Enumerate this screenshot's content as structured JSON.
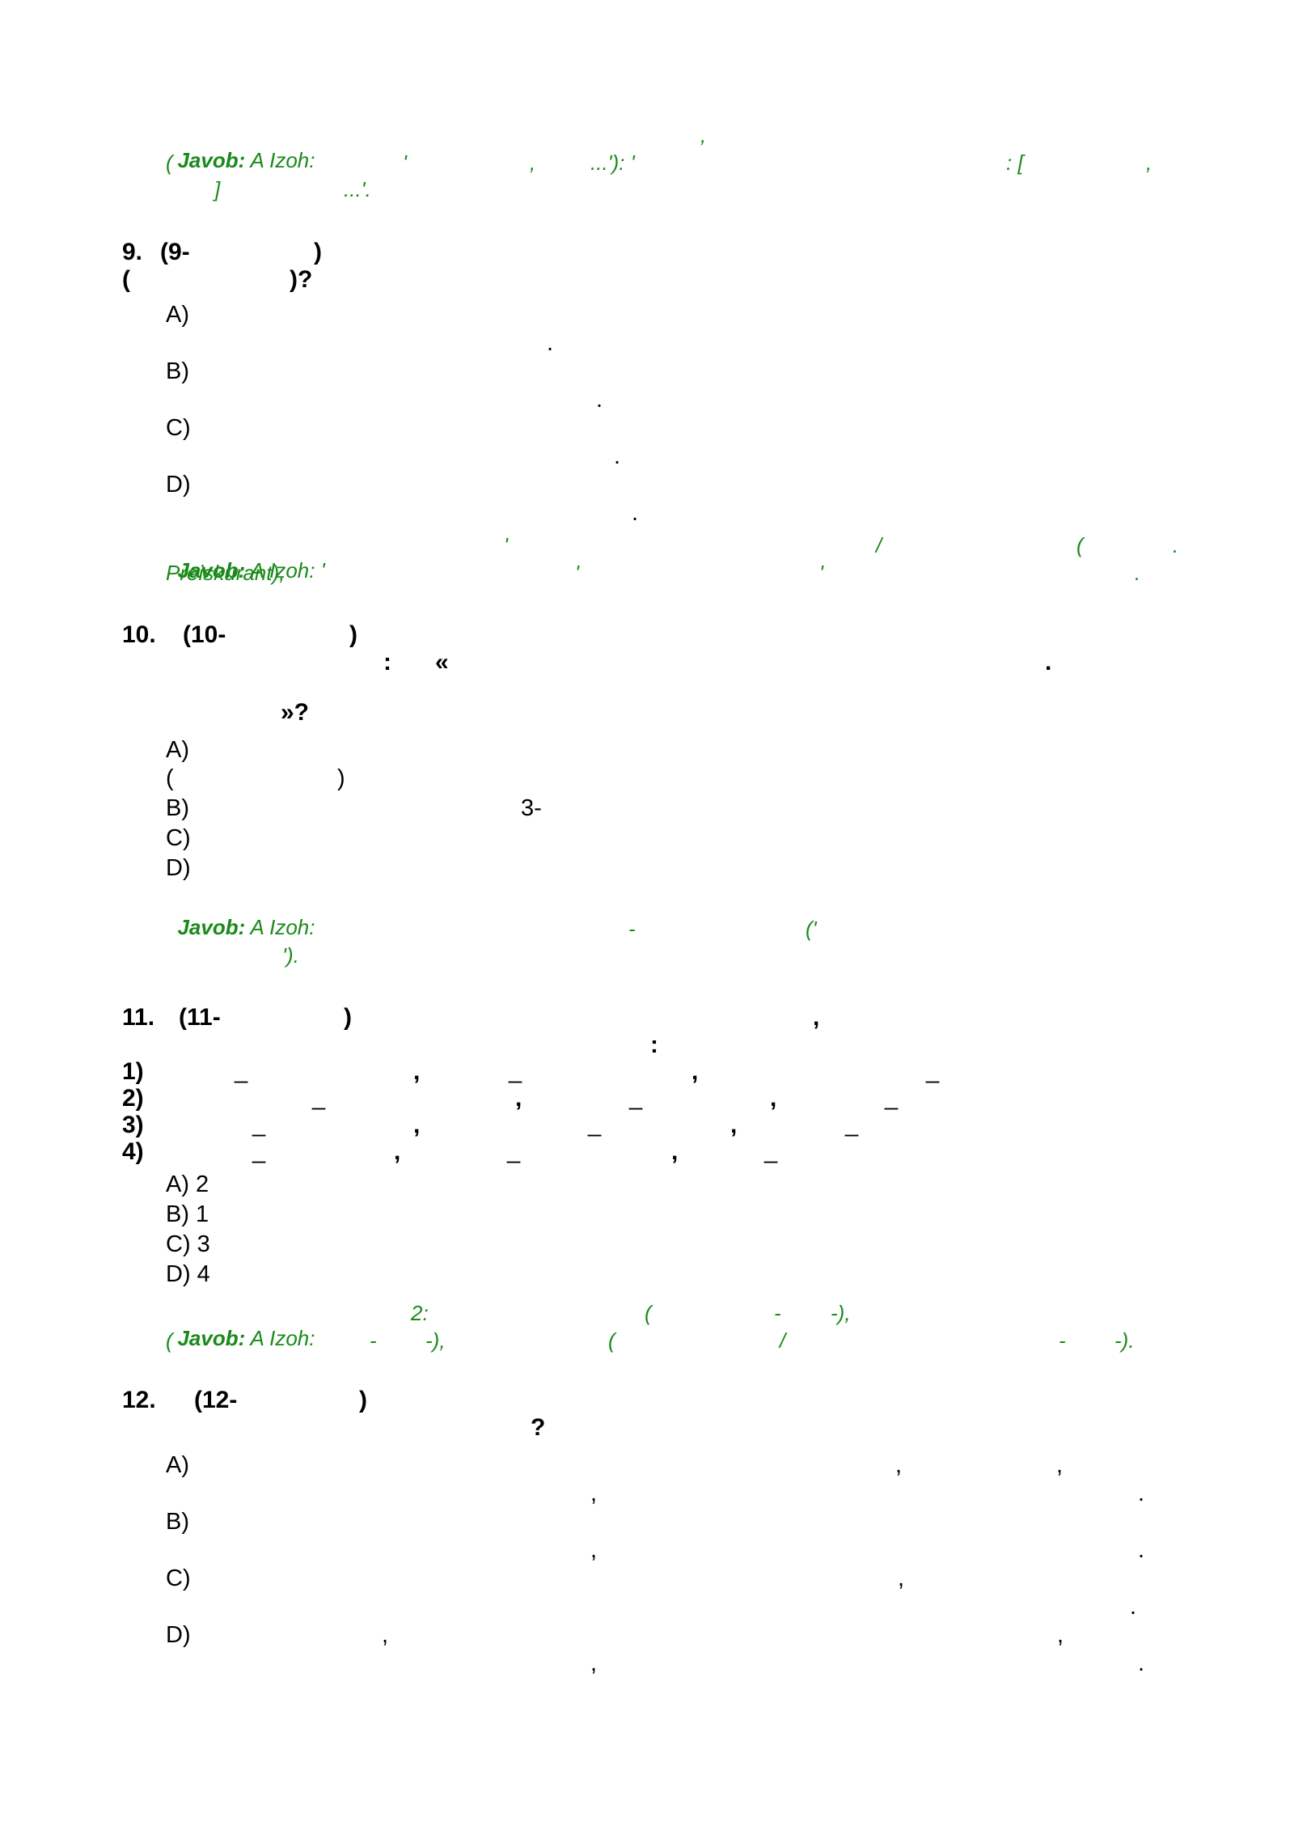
{
  "answer_top": {
    "label": "Javob:",
    "text": " A Izoh:",
    "fragments": [
      "(",
      "'",
      ",",
      "...'): '",
      ",",
      ": [",
      ",",
      "]",
      "...'."
    ]
  },
  "questions": [
    {
      "number": "9.",
      "header": "(9-",
      "header_close": ")",
      "line2_open": "(",
      "line2_close": ")?",
      "options": [
        "A)",
        "B)",
        "C)",
        "D)"
      ],
      "option_dots": [
        ".",
        ".",
        ".",
        "."
      ],
      "answer_label": "Javob:",
      "answer_text": " A Izoh: '",
      "answer_fragments": [
        "'",
        "/",
        "(",
        ".",
        "Preiskurant),",
        "'",
        "'",
        "."
      ]
    },
    {
      "number": "10.",
      "header": "(10-",
      "header_close": ")",
      "line2": ":",
      "line2_quote": "«",
      "line2_dot": ".",
      "line3": "»?",
      "options": [
        "A)",
        "B)",
        "C)",
        "D)"
      ],
      "option_extra": [
        "(",
        ")",
        "3-"
      ],
      "answer_label": "Javob:",
      "answer_text": " A Izoh:",
      "answer_fragments": [
        "-",
        "('",
        "')."
      ]
    },
    {
      "number": "11.",
      "header": "(11-",
      "header_close": ")",
      "header_comma": ",",
      "line2": ":",
      "items": [
        "1)",
        "2)",
        "3)",
        "4)"
      ],
      "item_marks": [
        "_",
        ",",
        "_",
        ",",
        "_"
      ],
      "options": [
        "A) 2",
        "B) 1",
        "C) 3",
        "D) 4"
      ],
      "answer_label": "Javob:",
      "answer_text": " A Izoh:",
      "answer_fragments": [
        "2:",
        "(",
        "-",
        "-),",
        "(",
        "-",
        "-),",
        "(",
        "/",
        "-",
        "-)."
      ]
    },
    {
      "number": "12.",
      "header": "(12-",
      "header_close": ")",
      "line2": "?",
      "options": [
        "A)",
        "B)",
        "C)",
        "D)"
      ],
      "option_marks": [
        ",",
        ",",
        ",",
        ".",
        ",",
        ".",
        ",",
        ".",
        ",",
        ",",
        ",",
        "."
      ]
    }
  ]
}
